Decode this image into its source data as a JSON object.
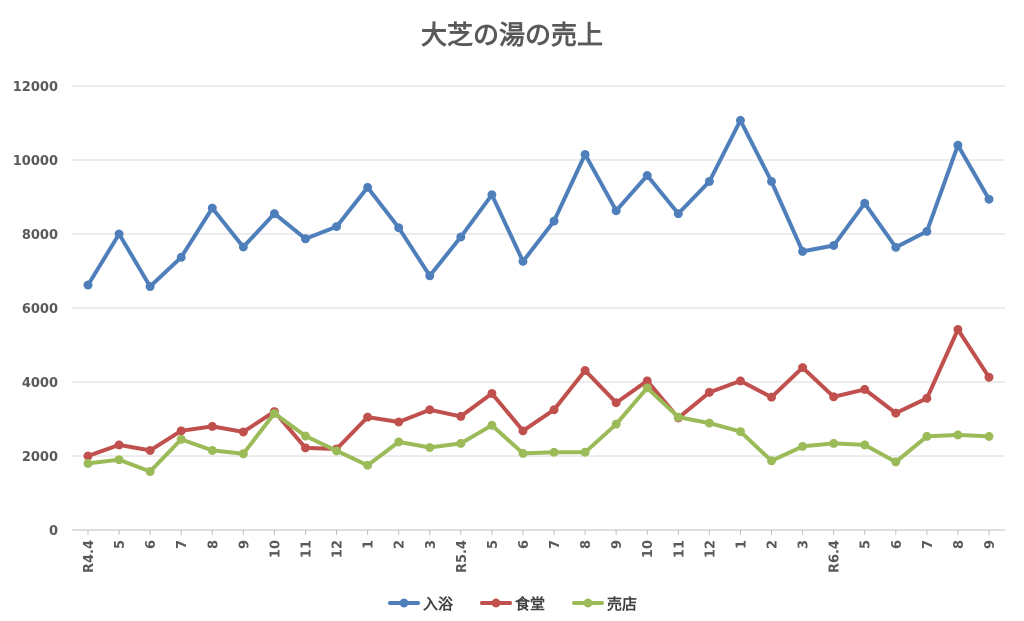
{
  "chart_data": {
    "type": "line",
    "title": "大芝の湯の売上",
    "xlabel": "",
    "ylabel": "",
    "ylim": [
      0,
      12000
    ],
    "yticks": [
      "0",
      "2000",
      "4000",
      "6000",
      "8000",
      "10000",
      "12000"
    ],
    "categories": [
      "R4.4",
      "5",
      "6",
      "7",
      "8",
      "9",
      "10",
      "11",
      "12",
      "1",
      "2",
      "3",
      "R5.4",
      "5",
      "6",
      "7",
      "8",
      "9",
      "10",
      "11",
      "12",
      "1",
      "2",
      "3",
      "R6.4",
      "5",
      "6",
      "7",
      "8",
      "9"
    ],
    "grid": true,
    "legend_position": "bottom",
    "series": [
      {
        "name": "入浴",
        "color": "#4f7fba",
        "values": [
          6620,
          8000,
          6580,
          7370,
          8700,
          7650,
          8550,
          7870,
          8200,
          9260,
          8170,
          6870,
          7920,
          9060,
          7260,
          8350,
          10150,
          8630,
          9580,
          8550,
          9420,
          11070,
          9420,
          7530,
          7690,
          8830,
          7640,
          8070,
          10400,
          8940
        ]
      },
      {
        "name": "食堂",
        "color": "#c0504d",
        "values": [
          2000,
          2300,
          2150,
          2680,
          2800,
          2650,
          3200,
          2220,
          2190,
          3050,
          2920,
          3250,
          3070,
          3690,
          2680,
          3250,
          4310,
          3440,
          4030,
          3030,
          3720,
          4030,
          3590,
          4390,
          3600,
          3800,
          3160,
          3560,
          5420,
          4130
        ]
      },
      {
        "name": "売店",
        "color": "#9bbb59",
        "values": [
          1800,
          1900,
          1580,
          2450,
          2150,
          2060,
          3150,
          2540,
          2140,
          1750,
          2380,
          2230,
          2340,
          2830,
          2070,
          2100,
          2100,
          2860,
          3840,
          3050,
          2890,
          2660,
          1870,
          2260,
          2340,
          2300,
          1840,
          2530,
          2570,
          2530
        ]
      }
    ]
  }
}
